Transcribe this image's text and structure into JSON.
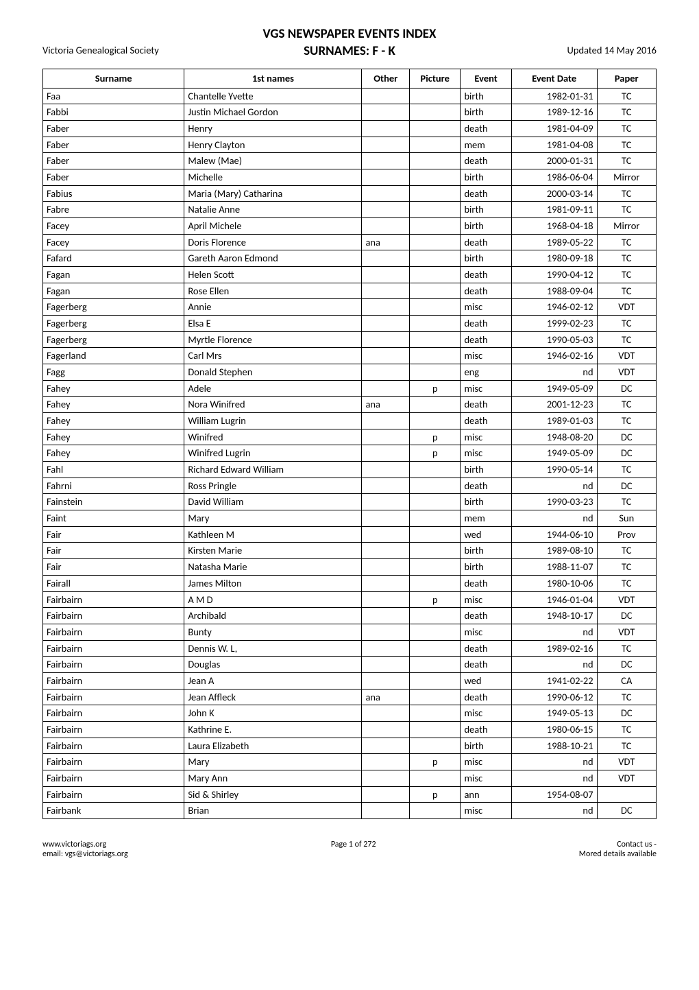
{
  "header": {
    "left": "Victoria Genealogical Society",
    "title_line1": "VGS NEWSPAPER EVENTS INDEX",
    "title_line2": "SURNAMES:  F - K",
    "right": "Updated 14 May 2016"
  },
  "table": {
    "columns": [
      "Surname",
      "1st names",
      "Other",
      "Picture",
      "Event",
      "Event Date",
      "Paper"
    ],
    "rows": [
      [
        "Faa",
        "Chantelle Yvette",
        "",
        "",
        "birth",
        "1982-01-31",
        "TC"
      ],
      [
        "Fabbi",
        "Justin Michael Gordon",
        "",
        "",
        "birth",
        "1989-12-16",
        "TC"
      ],
      [
        "Faber",
        "Henry",
        "",
        "",
        "death",
        "1981-04-09",
        "TC"
      ],
      [
        "Faber",
        "Henry Clayton",
        "",
        "",
        "mem",
        "1981-04-08",
        "TC"
      ],
      [
        "Faber",
        "Malew (Mae)",
        "",
        "",
        "death",
        "2000-01-31",
        "TC"
      ],
      [
        "Faber",
        "Michelle",
        "",
        "",
        "birth",
        "1986-06-04",
        "Mirror"
      ],
      [
        "Fabius",
        "Maria (Mary) Catharina",
        "",
        "",
        "death",
        "2000-03-14",
        "TC"
      ],
      [
        "Fabre",
        "Natalie Anne",
        "",
        "",
        "birth",
        "1981-09-11",
        "TC"
      ],
      [
        "Facey",
        "April Michele",
        "",
        "",
        "birth",
        "1968-04-18",
        "Mirror"
      ],
      [
        "Facey",
        "Doris Florence",
        "ana",
        "",
        "death",
        "1989-05-22",
        "TC"
      ],
      [
        "Fafard",
        "Gareth Aaron Edmond",
        "",
        "",
        "birth",
        "1980-09-18",
        "TC"
      ],
      [
        "Fagan",
        "Helen Scott",
        "",
        "",
        "death",
        "1990-04-12",
        "TC"
      ],
      [
        "Fagan",
        "Rose Ellen",
        "",
        "",
        "death",
        "1988-09-04",
        "TC"
      ],
      [
        "Fagerberg",
        "Annie",
        "",
        "",
        "misc",
        "1946-02-12",
        "VDT"
      ],
      [
        "Fagerberg",
        "Elsa E",
        "",
        "",
        "death",
        "1999-02-23",
        "TC"
      ],
      [
        "Fagerberg",
        "Myrtle Florence",
        "",
        "",
        "death",
        "1990-05-03",
        "TC"
      ],
      [
        "Fagerland",
        "Carl Mrs",
        "",
        "",
        "misc",
        "1946-02-16",
        "VDT"
      ],
      [
        "Fagg",
        "Donald Stephen",
        "",
        "",
        "eng",
        "nd",
        "VDT"
      ],
      [
        "Fahey",
        "Adele",
        "",
        "p",
        "misc",
        "1949-05-09",
        "DC"
      ],
      [
        "Fahey",
        "Nora Winifred",
        "ana",
        "",
        "death",
        "2001-12-23",
        "TC"
      ],
      [
        "Fahey",
        "William Lugrin",
        "",
        "",
        "death",
        "1989-01-03",
        "TC"
      ],
      [
        "Fahey",
        "Winifred",
        "",
        "p",
        "misc",
        "1948-08-20",
        "DC"
      ],
      [
        "Fahey",
        "Winifred Lugrin",
        "",
        "p",
        "misc",
        "1949-05-09",
        "DC"
      ],
      [
        "Fahl",
        "Richard Edward William",
        "",
        "",
        "birth",
        "1990-05-14",
        "TC"
      ],
      [
        "Fahrni",
        "Ross Pringle",
        "",
        "",
        "death",
        "nd",
        "DC"
      ],
      [
        "Fainstein",
        "David William",
        "",
        "",
        "birth",
        "1990-03-23",
        "TC"
      ],
      [
        "Faint",
        "Mary",
        "",
        "",
        "mem",
        "nd",
        "Sun"
      ],
      [
        "Fair",
        "Kathleen M",
        "",
        "",
        "wed",
        "1944-06-10",
        "Prov"
      ],
      [
        "Fair",
        "Kirsten Marie",
        "",
        "",
        "birth",
        "1989-08-10",
        "TC"
      ],
      [
        "Fair",
        "Natasha Marie",
        "",
        "",
        "birth",
        "1988-11-07",
        "TC"
      ],
      [
        "Fairall",
        "James Milton",
        "",
        "",
        "death",
        "1980-10-06",
        "TC"
      ],
      [
        "Fairbairn",
        "A M D",
        "",
        "p",
        "misc",
        "1946-01-04",
        "VDT"
      ],
      [
        "Fairbairn",
        "Archibald",
        "",
        "",
        "death",
        "1948-10-17",
        "DC"
      ],
      [
        "Fairbairn",
        "Bunty",
        "",
        "",
        "misc",
        "nd",
        "VDT"
      ],
      [
        "Fairbairn",
        "Dennis W. L,",
        "",
        "",
        "death",
        "1989-02-16",
        "TC"
      ],
      [
        "Fairbairn",
        "Douglas",
        "",
        "",
        "death",
        "nd",
        "DC"
      ],
      [
        "Fairbairn",
        "Jean A",
        "",
        "",
        "wed",
        "1941-02-22",
        "CA"
      ],
      [
        "Fairbairn",
        "Jean Affleck",
        "ana",
        "",
        "death",
        "1990-06-12",
        "TC"
      ],
      [
        "Fairbairn",
        "John K",
        "",
        "",
        "misc",
        "1949-05-13",
        "DC"
      ],
      [
        "Fairbairn",
        "Kathrine E.",
        "",
        "",
        "death",
        "1980-06-15",
        "TC"
      ],
      [
        "Fairbairn",
        "Laura Elizabeth",
        "",
        "",
        "birth",
        "1988-10-21",
        "TC"
      ],
      [
        "Fairbairn",
        "Mary",
        "",
        "p",
        "misc",
        "nd",
        "VDT"
      ],
      [
        "Fairbairn",
        "Mary Ann",
        "",
        "",
        "misc",
        "nd",
        "VDT"
      ],
      [
        "Fairbairn",
        "Sid & Shirley",
        "",
        "p",
        "ann",
        "1954-08-07",
        ""
      ],
      [
        "Fairbank",
        "Brian",
        "",
        "",
        "misc",
        "nd",
        "DC"
      ]
    ]
  },
  "footer": {
    "left_line1": "www.victoriags.org",
    "left_line2": "email: vgs@victoriags.org",
    "center": "Page 1 of 272",
    "right_line1": "Contact us -",
    "right_line2": "Mored details available"
  }
}
